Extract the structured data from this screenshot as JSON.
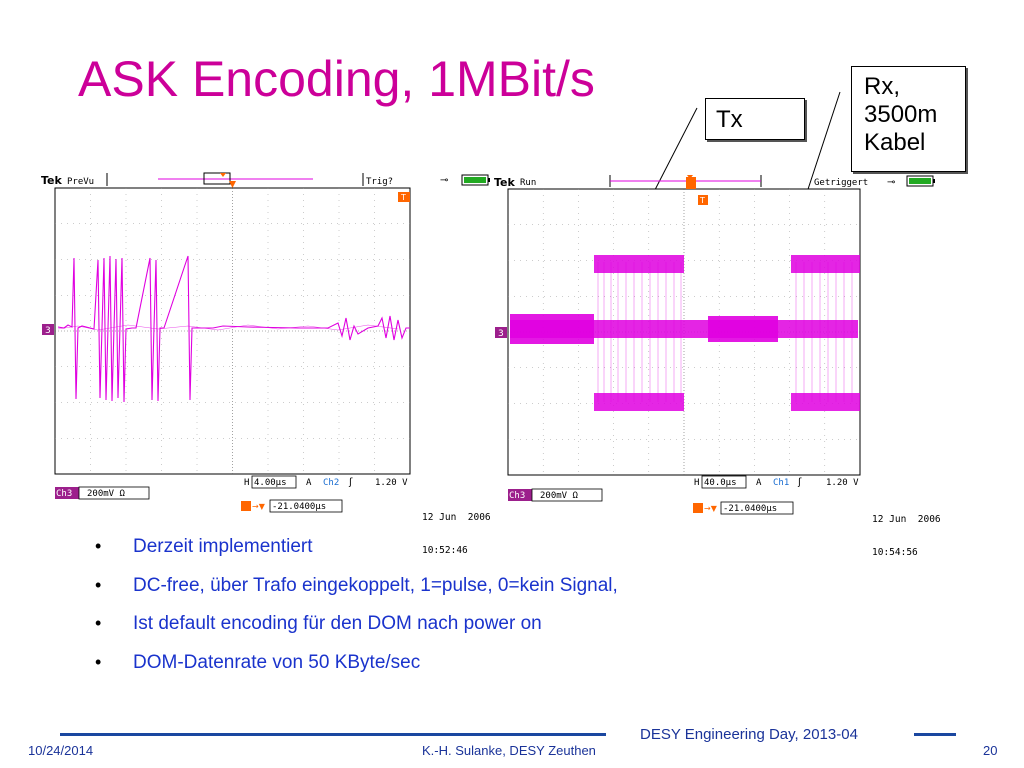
{
  "slide": {
    "title": "ASK Encoding, 1MBit/s",
    "callout_tx": "Tx",
    "callout_rx": [
      "Rx,",
      "3500m",
      "Kabel"
    ]
  },
  "scope_left": {
    "brand": "Tek",
    "mode": "PreVu",
    "trigger_status": "Trig?",
    "channel_marker": "3",
    "horizontal_label": "H",
    "horizontal_scale": "4.00µs",
    "trigger_label": "A",
    "trigger_channel": "Ch2",
    "trigger_level": "1.20 V",
    "channel_label": "Ch3",
    "channel_scale": "200mV Ω",
    "trigger_offset": "-21.0400µs",
    "date": "12 Jun  2006",
    "time": "10:52:46",
    "trace_color": "#e000e0"
  },
  "scope_right": {
    "brand": "Tek",
    "mode": "Run",
    "trigger_status": "Getriggert",
    "channel_marker": "3",
    "horizontal_label": "H",
    "horizontal_scale": "40.0µs",
    "trigger_label": "A",
    "trigger_channel": "Ch1",
    "trigger_level": "1.20 V",
    "channel_label": "Ch3",
    "channel_scale": "200mV Ω",
    "trigger_offset": "-21.0400µs",
    "date": "12 Jun  2006",
    "time": "10:54:56",
    "trace_color": "#e000e0"
  },
  "bullets": [
    "Derzeit implementiert",
    "DC-free, über Trafo eingekoppelt, 1=pulse, 0=kein Signal,",
    "Ist default encoding für den DOM nach power on",
    "DOM-Datenrate von 50 KByte/sec"
  ],
  "footer": {
    "date": "10/24/2014",
    "author": "K.-H. Sulanke, DESY Zeuthen",
    "event": "DESY Engineering Day, 2013-04",
    "page": "20"
  },
  "colors": {
    "title": "#cc0099",
    "bullet_text": "#1a33cc",
    "footer": "#1a3399",
    "footer_rule": "#1a47a0",
    "trace": "#e000e0",
    "channel_badge": "#9c1f8c",
    "battery": "#22aa22"
  }
}
